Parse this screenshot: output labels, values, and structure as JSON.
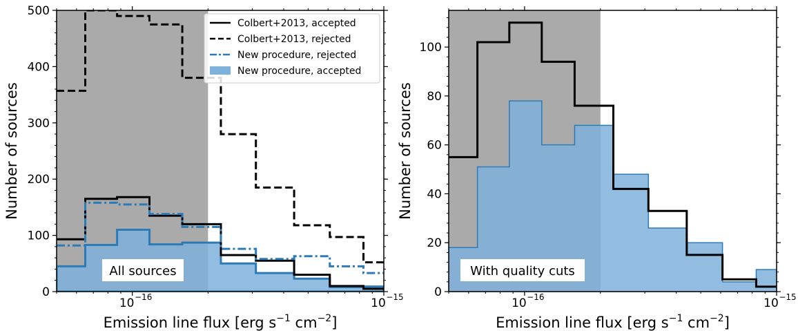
{
  "chart_data": [
    {
      "type": "histogram",
      "panel_label": "All sources",
      "xlabel_main": "Emission line flux [erg s",
      "xlabel_sup1": "−1",
      "xlabel_mid": " cm",
      "xlabel_sup2": "−2",
      "xlabel_end": "]",
      "ylabel": "Number of sources",
      "xscale": "log",
      "xlim": [
        5e-17,
        1e-15
      ],
      "ylim": [
        0,
        500
      ],
      "x_ticks": [
        {
          "value": 1e-16,
          "base": "10",
          "exp": "−16"
        },
        {
          "value": 1e-15,
          "base": "10",
          "exp": "−15"
        }
      ],
      "y_ticks": [
        {
          "value": 0,
          "label": "0"
        },
        {
          "value": 100,
          "label": "100"
        },
        {
          "value": 200,
          "label": "200"
        },
        {
          "value": 300,
          "label": "300"
        },
        {
          "value": 400,
          "label": "400"
        },
        {
          "value": 500,
          "label": "500"
        }
      ],
      "shaded_region": {
        "x_start": 5e-17,
        "x_end": 2e-16,
        "color": "#aaaaaa"
      },
      "bin_edges": [
        5e-17,
        6.5e-17,
        8.7e-17,
        1.17e-16,
        1.58e-16,
        2.25e-16,
        3.1e-16,
        4.4e-16,
        6.1e-16,
        8.3e-16,
        1e-15
      ],
      "series": [
        {
          "name": "Colbert+2013, accepted",
          "style": "solid",
          "color": "#000000",
          "values": [
            93,
            165,
            168,
            135,
            120,
            65,
            55,
            30,
            10,
            5
          ]
        },
        {
          "name": "Colbert+2013, rejected",
          "style": "dashed",
          "color": "#000000",
          "values": [
            357,
            500,
            490,
            475,
            380,
            280,
            185,
            118,
            97,
            52
          ]
        },
        {
          "name": "New procedure, rejected",
          "style": "dashdot",
          "color": "#2c7bb6",
          "values": [
            82,
            158,
            155,
            138,
            115,
            76,
            58,
            63,
            45,
            33
          ]
        },
        {
          "name": "New procedure, accepted",
          "style": "filled",
          "color": "#7fb2da",
          "edge": "#2c7bb6",
          "values": [
            45,
            83,
            110,
            84,
            87,
            50,
            33,
            23,
            8,
            9
          ]
        }
      ],
      "legend_placement": "top-right"
    },
    {
      "type": "histogram",
      "panel_label": "With quality cuts",
      "xlabel_main": "Emission line flux [erg s",
      "xlabel_sup1": "−1",
      "xlabel_mid": " cm",
      "xlabel_sup2": "−2",
      "xlabel_end": "]",
      "ylabel": "Number of sources",
      "xscale": "log",
      "xlim": [
        5e-17,
        1e-15
      ],
      "ylim": [
        0,
        115
      ],
      "x_ticks": [
        {
          "value": 1e-16,
          "base": "10",
          "exp": "−16"
        },
        {
          "value": 1e-15,
          "base": "10",
          "exp": "−15"
        }
      ],
      "y_ticks": [
        {
          "value": 0,
          "label": "0"
        },
        {
          "value": 20,
          "label": "20"
        },
        {
          "value": 40,
          "label": "40"
        },
        {
          "value": 60,
          "label": "60"
        },
        {
          "value": 80,
          "label": "80"
        },
        {
          "value": 100,
          "label": "100"
        }
      ],
      "shaded_region": {
        "x_start": 5e-17,
        "x_end": 2e-16,
        "color": "#aaaaaa"
      },
      "bin_edges": [
        5e-17,
        6.5e-17,
        8.7e-17,
        1.17e-16,
        1.58e-16,
        2.25e-16,
        3.1e-16,
        4.4e-16,
        6.1e-16,
        8.3e-16,
        1e-15
      ],
      "series": [
        {
          "name": "Colbert+2013, accepted",
          "style": "solid",
          "color": "#000000",
          "values": [
            55,
            102,
            110,
            94,
            76,
            42,
            33,
            15,
            5,
            2
          ]
        },
        {
          "name": "New procedure, accepted",
          "style": "filled",
          "color": "#7fb2da",
          "edge": "#2c7bb6",
          "values": [
            18,
            51,
            78,
            60,
            68,
            48,
            26,
            20,
            4,
            9
          ]
        }
      ]
    }
  ]
}
